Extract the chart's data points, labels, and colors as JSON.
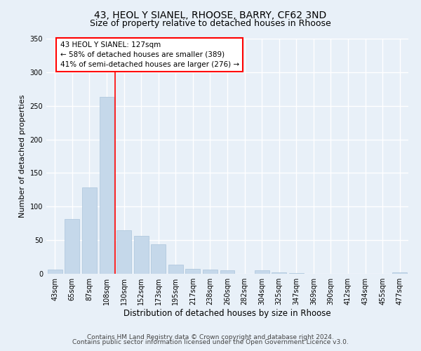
{
  "title1": "43, HEOL Y SIANEL, RHOOSE, BARRY, CF62 3ND",
  "title2": "Size of property relative to detached houses in Rhoose",
  "xlabel": "Distribution of detached houses by size in Rhoose",
  "ylabel": "Number of detached properties",
  "bar_labels": [
    "43sqm",
    "65sqm",
    "87sqm",
    "108sqm",
    "130sqm",
    "152sqm",
    "173sqm",
    "195sqm",
    "217sqm",
    "238sqm",
    "260sqm",
    "282sqm",
    "304sqm",
    "325sqm",
    "347sqm",
    "369sqm",
    "390sqm",
    "412sqm",
    "434sqm",
    "455sqm",
    "477sqm"
  ],
  "bar_values": [
    6,
    81,
    129,
    263,
    65,
    56,
    44,
    14,
    7,
    6,
    5,
    0,
    5,
    2,
    1,
    0,
    0,
    0,
    0,
    0,
    2
  ],
  "bar_color": "#c5d8ea",
  "bar_edgecolor": "#aac4db",
  "vline_x": 3.5,
  "vline_color": "red",
  "annotation_text": "43 HEOL Y SIANEL: 127sqm\n← 58% of detached houses are smaller (389)\n41% of semi-detached houses are larger (276) →",
  "annotation_box_edgecolor": "red",
  "annotation_box_facecolor": "white",
  "ylim": [
    0,
    350
  ],
  "yticks": [
    0,
    50,
    100,
    150,
    200,
    250,
    300,
    350
  ],
  "footer1": "Contains HM Land Registry data © Crown copyright and database right 2024.",
  "footer2": "Contains public sector information licensed under the Open Government Licence v3.0.",
  "background_color": "#e8f0f8",
  "plot_background": "#e8f0f8",
  "grid_color": "#ffffff",
  "title1_fontsize": 10,
  "title2_fontsize": 9,
  "xlabel_fontsize": 8.5,
  "ylabel_fontsize": 8,
  "tick_fontsize": 7,
  "footer_fontsize": 6.5,
  "annot_fontsize": 7.5
}
